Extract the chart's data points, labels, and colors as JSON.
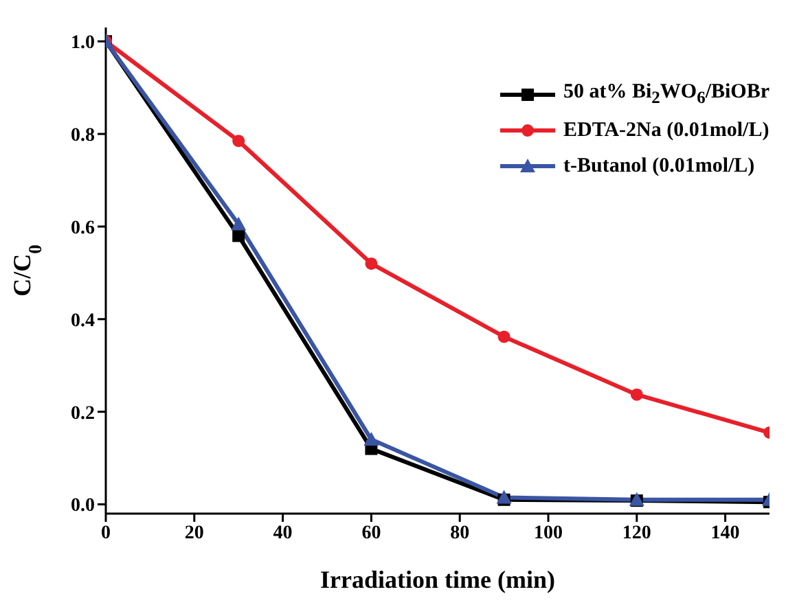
{
  "chart_data": {
    "type": "line",
    "xlabel": "Irradiation time (min)",
    "ylabel": "C/C$_{0}$",
    "x": [
      0,
      30,
      60,
      90,
      120,
      150
    ],
    "series": [
      {
        "name": "50 at% Bi$_{2}$WO$_{6}$/BiOBr",
        "color": "#000000",
        "marker": "square",
        "values": [
          1.0,
          0.58,
          0.12,
          0.01,
          0.008,
          0.005
        ]
      },
      {
        "name": "EDTA-2Na (0.01mol/L)",
        "color": "#e8202a",
        "marker": "circle",
        "values": [
          1.0,
          0.785,
          0.52,
          0.362,
          0.237,
          0.155
        ]
      },
      {
        "name": "t-Butanol (0.01mol/L)",
        "color": "#3a55a4",
        "marker": "triangle",
        "values": [
          1.0,
          0.605,
          0.14,
          0.015,
          0.01,
          0.01
        ]
      }
    ],
    "xlim": [
      0,
      150
    ],
    "xticks": [
      0,
      20,
      40,
      60,
      80,
      100,
      120,
      140
    ],
    "ylim": [
      -0.02,
      1.03
    ],
    "yticks": [
      {
        "value": 0,
        "label": "0.0"
      },
      {
        "value": 0.2,
        "label": "0.2"
      },
      {
        "value": 0.4,
        "label": "0.4"
      },
      {
        "value": 0.6,
        "label": "0.6"
      },
      {
        "value": 0.8,
        "label": "0.8"
      },
      {
        "value": 1,
        "label": "1.0"
      }
    ],
    "legend": "top right",
    "grid": false
  }
}
